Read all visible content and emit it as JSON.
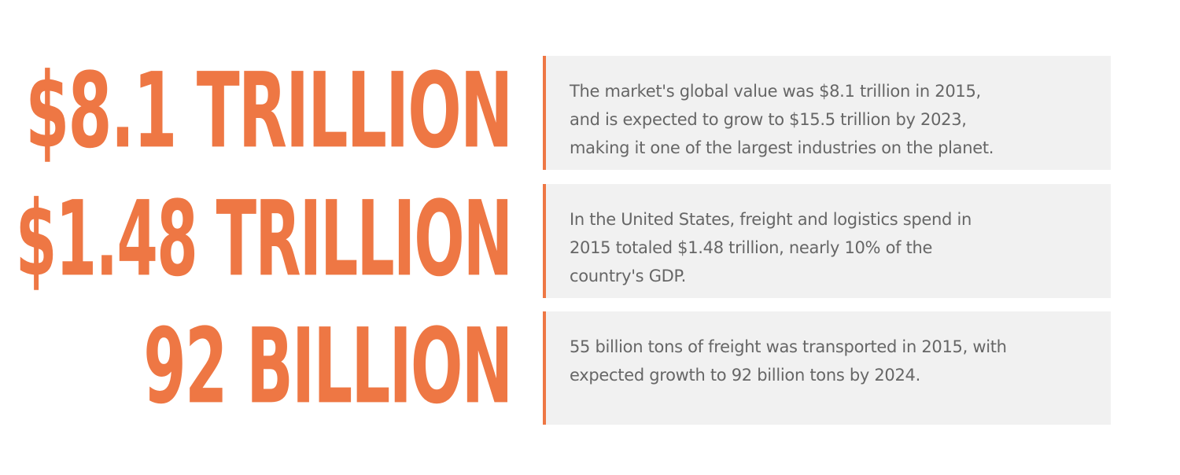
{
  "stats": [
    {
      "figure": "$8.1 TRILLION",
      "description": "The market's global value was $8.1 trillion in 2015,\nand is expected to grow to $15.5 trillion by 2023,\nmaking it one of the largest industries on the planet.",
      "accent_color": "#ee7744"
    },
    {
      "figure": "$1.48 TRILLION",
      "description": "In the United States, freight and logistics spend in\n2015 totaled $1.48 trillion, nearly 10% of the\ncountry's GDP.",
      "accent_color": "#ee7744"
    },
    {
      "figure": "92 BILLION",
      "description": "55 billion tons of freight was transported in 2015, with\nexpected growth to 92 billion tons by 2024.",
      "accent_color": "#ee7744"
    }
  ]
}
